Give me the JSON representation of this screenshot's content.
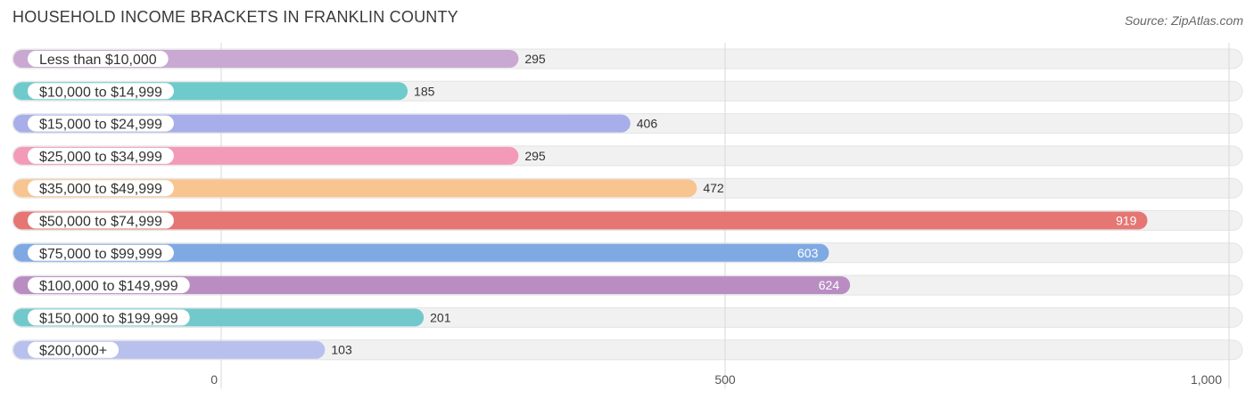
{
  "header": {
    "title": "HOUSEHOLD INCOME BRACKETS IN FRANKLIN COUNTY",
    "source": "Source: ZipAtlas.com"
  },
  "chart_data": {
    "type": "bar",
    "orientation": "horizontal",
    "title": "HOUSEHOLD INCOME BRACKETS IN FRANKLIN COUNTY",
    "categories": [
      "Less than $10,000",
      "$10,000 to $14,999",
      "$15,000 to $24,999",
      "$25,000 to $34,999",
      "$35,000 to $49,999",
      "$50,000 to $74,999",
      "$75,000 to $99,999",
      "$100,000 to $149,999",
      "$150,000 to $199,999",
      "$200,000+"
    ],
    "values": [
      295,
      185,
      406,
      295,
      472,
      919,
      603,
      624,
      201,
      103
    ],
    "value_labels": [
      "295",
      "185",
      "406",
      "295",
      "472",
      "919",
      "603",
      "624",
      "201",
      "103"
    ],
    "colors": [
      "#c9a8d2",
      "#6fcbcb",
      "#a7aee9",
      "#f39ab9",
      "#f8c48f",
      "#e57673",
      "#7fa9e2",
      "#b98dc2",
      "#72c9cc",
      "#b8c0ee"
    ],
    "xlim": [
      0,
      1000
    ],
    "xticks": [
      0,
      500,
      1000
    ],
    "xtick_labels": [
      "0",
      "500",
      "1,000"
    ],
    "grid": true,
    "legend": "none"
  }
}
